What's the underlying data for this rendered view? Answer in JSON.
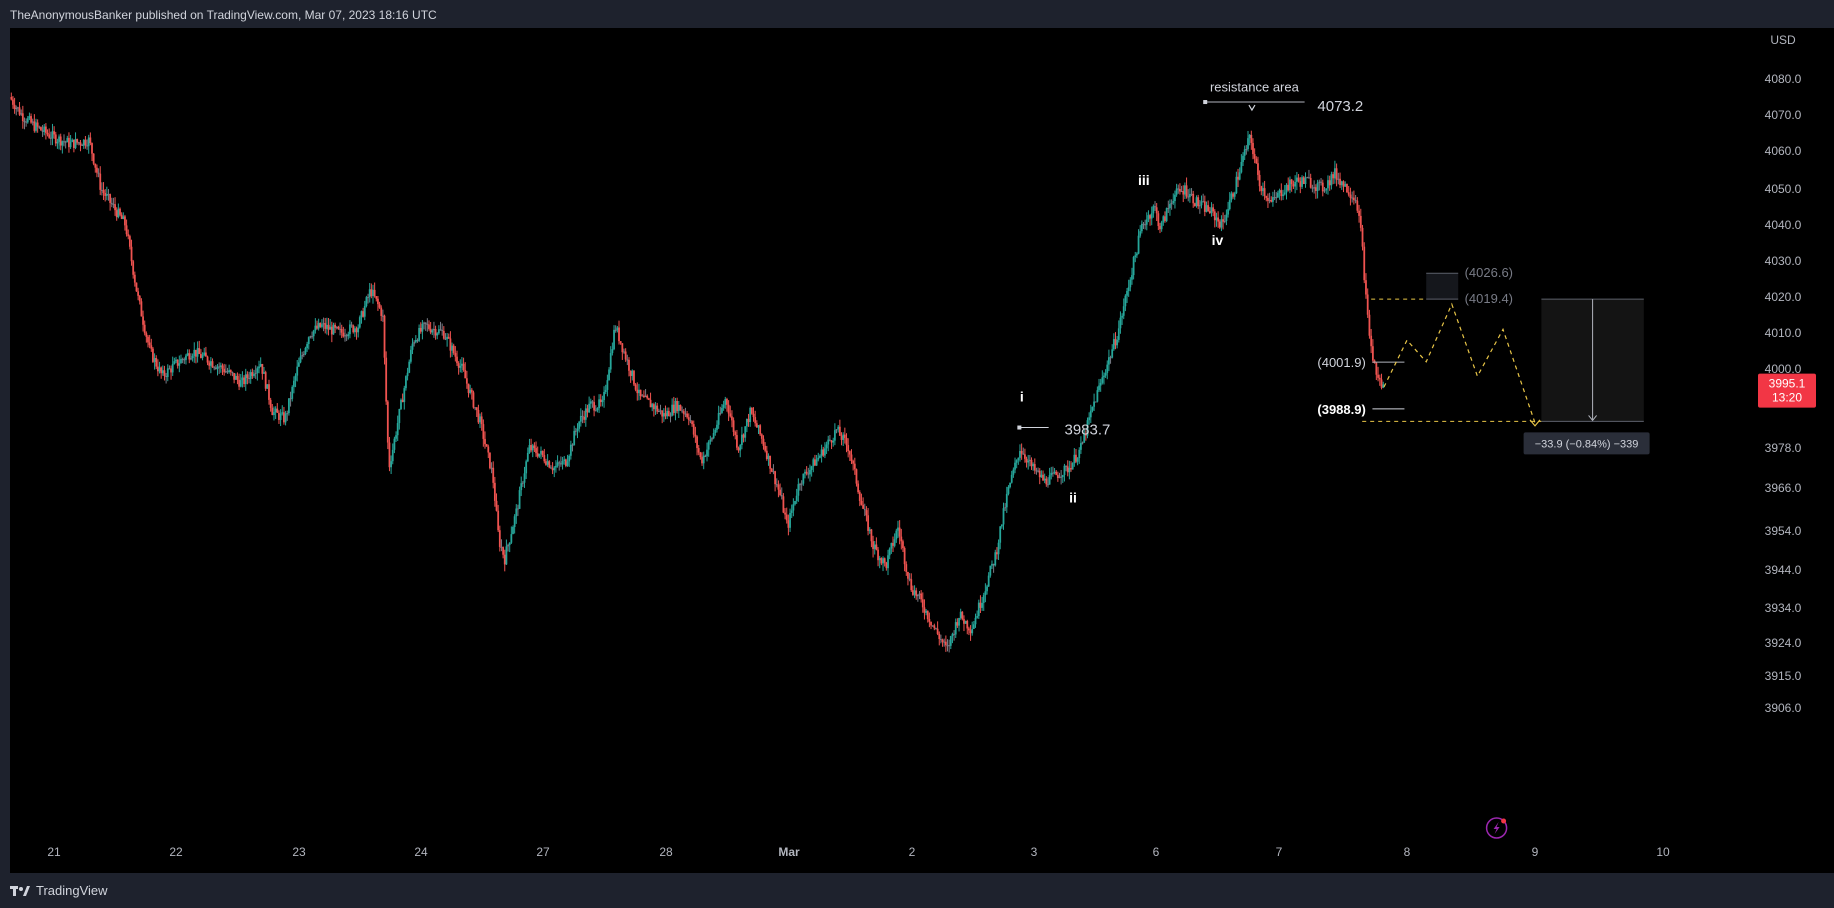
{
  "header": {
    "publish_line": "TheAnonymousBanker published on TradingView.com, Mar 07, 2023 18:16 UTC"
  },
  "footer": {
    "brand": "TradingView",
    "logo_icon": "tradingview-logo-icon"
  },
  "colors": {
    "up": "#26a69a",
    "down": "#ef5350",
    "neutral": "#787b86",
    "background": "#000000",
    "projection": "#e8c547",
    "price_label_bg": "#f23645"
  },
  "chart_data": {
    "type": "candlestick",
    "currency": "USD",
    "y_ticks": [
      4080.0,
      4070.0,
      4060.0,
      4050.0,
      4040.0,
      4030.0,
      4020.0,
      4010.0,
      4000.0,
      3978.0,
      3966.0,
      3954.0,
      3944.0,
      3934.0,
      3924.0,
      3915.0,
      3906.0
    ],
    "y_tick_labels": [
      "4080.0",
      "4070.0",
      "4060.0",
      "4050.0",
      "4040.0",
      "4030.0",
      "4020.0",
      "4010.0",
      "4000.0",
      "3978.0",
      "3966.0",
      "3954.0",
      "3944.0",
      "3934.0",
      "3924.0",
      "3915.0",
      "3906.0"
    ],
    "x_ticks": [
      {
        "label": "21",
        "x": 0
      },
      {
        "label": "22",
        "x": 1
      },
      {
        "label": "23",
        "x": 2
      },
      {
        "label": "24",
        "x": 3
      },
      {
        "label": "27",
        "x": 4
      },
      {
        "label": "28",
        "x": 5
      },
      {
        "label": "Mar",
        "x": 6
      },
      {
        "label": "2",
        "x": 7
      },
      {
        "label": "3",
        "x": 8
      },
      {
        "label": "6",
        "x": 9
      },
      {
        "label": "7",
        "x": 10
      },
      {
        "label": "8",
        "x": 11
      },
      {
        "label": "9",
        "x": 12
      },
      {
        "label": "10",
        "x": 13
      }
    ],
    "price_path": [
      [
        -0.35,
        4075
      ],
      [
        -0.25,
        4070
      ],
      [
        -0.15,
        4067
      ],
      [
        0.0,
        4064
      ],
      [
        0.15,
        4062
      ],
      [
        0.3,
        4063
      ],
      [
        0.4,
        4050
      ],
      [
        0.5,
        4045
      ],
      [
        0.6,
        4040
      ],
      [
        0.7,
        4020
      ],
      [
        0.8,
        4005
      ],
      [
        0.9,
        3998
      ],
      [
        1.0,
        4001
      ],
      [
        1.15,
        4005
      ],
      [
        1.25,
        4003
      ],
      [
        1.4,
        4000
      ],
      [
        1.55,
        3996
      ],
      [
        1.7,
        4002
      ],
      [
        1.8,
        3988
      ],
      [
        1.9,
        3986
      ],
      [
        2.0,
        4000
      ],
      [
        2.1,
        4010
      ],
      [
        2.2,
        4012
      ],
      [
        2.35,
        4010
      ],
      [
        2.5,
        4012
      ],
      [
        2.6,
        4022
      ],
      [
        2.7,
        4015
      ],
      [
        2.75,
        3972
      ],
      [
        2.85,
        3990
      ],
      [
        2.95,
        4008
      ],
      [
        3.05,
        4012
      ],
      [
        3.2,
        4010
      ],
      [
        3.35,
        4000
      ],
      [
        3.5,
        3985
      ],
      [
        3.6,
        3970
      ],
      [
        3.65,
        3952
      ],
      [
        3.7,
        3947
      ],
      [
        3.8,
        3960
      ],
      [
        3.9,
        3978
      ],
      [
        4.0,
        3976
      ],
      [
        4.1,
        3972
      ],
      [
        4.2,
        3974
      ],
      [
        4.3,
        3985
      ],
      [
        4.4,
        3990
      ],
      [
        4.5,
        3990
      ],
      [
        4.6,
        4012
      ],
      [
        4.7,
        4002
      ],
      [
        4.8,
        3992
      ],
      [
        4.9,
        3990
      ],
      [
        5.0,
        3987
      ],
      [
        5.1,
        3990
      ],
      [
        5.2,
        3987
      ],
      [
        5.3,
        3974
      ],
      [
        5.4,
        3982
      ],
      [
        5.5,
        3992
      ],
      [
        5.6,
        3978
      ],
      [
        5.7,
        3988
      ],
      [
        5.8,
        3980
      ],
      [
        5.95,
        3963
      ],
      [
        6.0,
        3955
      ],
      [
        6.1,
        3968
      ],
      [
        6.25,
        3975
      ],
      [
        6.4,
        3983
      ],
      [
        6.5,
        3978
      ],
      [
        6.6,
        3962
      ],
      [
        6.7,
        3950
      ],
      [
        6.8,
        3945
      ],
      [
        6.9,
        3955
      ],
      [
        7.0,
        3940
      ],
      [
        7.1,
        3935
      ],
      [
        7.2,
        3928
      ],
      [
        7.3,
        3922
      ],
      [
        7.4,
        3932
      ],
      [
        7.5,
        3928
      ],
      [
        7.6,
        3938
      ],
      [
        7.7,
        3948
      ],
      [
        7.8,
        3965
      ],
      [
        7.9,
        3978
      ],
      [
        8.0,
        3972
      ],
      [
        8.1,
        3968
      ],
      [
        8.2,
        3970
      ],
      [
        8.3,
        3972
      ],
      [
        8.4,
        3978
      ],
      [
        8.5,
        3990
      ],
      [
        8.6,
        4000
      ],
      [
        8.7,
        4010
      ],
      [
        8.8,
        4025
      ],
      [
        8.9,
        4040
      ],
      [
        9.0,
        4045
      ],
      [
        9.05,
        4039
      ],
      [
        9.15,
        4048
      ],
      [
        9.25,
        4050
      ],
      [
        9.35,
        4046
      ],
      [
        9.45,
        4044
      ],
      [
        9.55,
        4040
      ],
      [
        9.65,
        4050
      ],
      [
        9.72,
        4058
      ],
      [
        9.78,
        4064
      ],
      [
        9.85,
        4052
      ],
      [
        9.95,
        4046
      ],
      [
        10.05,
        4050
      ],
      [
        10.15,
        4052
      ],
      [
        10.25,
        4052
      ],
      [
        10.35,
        4050
      ],
      [
        10.45,
        4054
      ],
      [
        10.55,
        4050
      ],
      [
        10.62,
        4047
      ],
      [
        10.66,
        4036
      ],
      [
        10.7,
        4016
      ],
      [
        10.74,
        4004
      ],
      [
        10.78,
        3998
      ],
      [
        10.82,
        3995
      ]
    ],
    "labels": [
      {
        "text": "resistance area",
        "x": 9.8,
        "y": 4076.5,
        "kind": "caption"
      },
      {
        "text": "4073.2",
        "x": 10.3,
        "y": 4072.5,
        "kind": "level"
      },
      {
        "text": "iii",
        "x": 8.9,
        "y": 4051,
        "kind": "wave"
      },
      {
        "text": "iv",
        "x": 9.5,
        "y": 4034.5,
        "kind": "wave"
      },
      {
        "text": "i",
        "x": 7.9,
        "y": 3991,
        "kind": "wave"
      },
      {
        "text": "3983.7",
        "x": 8.25,
        "y": 3983.2,
        "kind": "level"
      },
      {
        "text": "ii",
        "x": 8.32,
        "y": 3962,
        "kind": "wave"
      },
      {
        "text": "(4026.6)",
        "x": 11.45,
        "y": 4026.6,
        "kind": "projection"
      },
      {
        "text": "(4019.4)",
        "x": 11.45,
        "y": 4019.4,
        "kind": "projection"
      },
      {
        "text": "(4001.9)",
        "x": 10.3,
        "y": 4001.9,
        "kind": "target"
      },
      {
        "text": "(3988.9)",
        "x": 10.3,
        "y": 3988.9,
        "kind": "target-bold"
      }
    ],
    "projection_path": [
      [
        10.82,
        3995
      ],
      [
        11.0,
        4008
      ],
      [
        11.15,
        4002
      ],
      [
        11.35,
        4018
      ],
      [
        11.55,
        3998
      ],
      [
        11.75,
        4011
      ],
      [
        12.0,
        3985
      ]
    ],
    "measure": {
      "from": 4019.4,
      "to": 3985.4,
      "x_start": 12.05,
      "x_end": 12.85,
      "label": "−33.9 (−0.84%) −339"
    },
    "last_price": {
      "value": "3995.1",
      "time": "13:20",
      "y": 3995.1
    },
    "logo_icon": "lightning-icon"
  }
}
